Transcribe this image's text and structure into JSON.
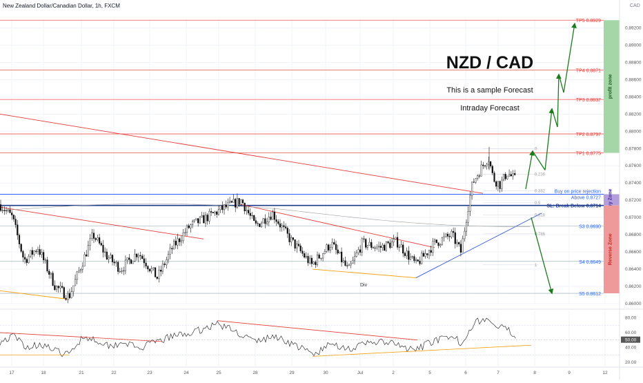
{
  "header": {
    "symbol_line": "New Zealand Dollar/Canadian Dollar, 1h, FXCM",
    "currency": "CAD"
  },
  "overlay": {
    "title": "NZD / CAD",
    "subtitle1": "This is a sample Forecast",
    "subtitle2": "Intraday Forecast"
  },
  "colors": {
    "tp_line": "#ef5350",
    "support_line": "#2962ff",
    "buy_line": "#1e3a8a",
    "forecast_arrow": "#1b7a1b",
    "trend_red": "#e53935",
    "trend_orange": "#f59e0b",
    "trend_blue": "#3b5bdb",
    "profit_zone": "#a5d6a7",
    "buy_zone": "#b39ddb",
    "reverse_zone": "#ef9a9a",
    "candle": "#111111",
    "rsi_line": "#333333"
  },
  "chart_data": [
    {
      "type": "candlestick",
      "title": "",
      "x_axis": {
        "tick_labels": [
          "17",
          "18",
          "21",
          "22",
          "23",
          "24",
          "25",
          "28",
          "29",
          "30",
          "Jul",
          "2",
          "5",
          "6",
          "7",
          "8",
          "9",
          "12"
        ]
      },
      "y_axis": {
        "range": [
          0.86,
          0.893
        ],
        "tick_labels": [
          "0.89200",
          "0.89000",
          "0.88800",
          "0.88600",
          "0.88400",
          "0.88200",
          "0.88000",
          "0.87800",
          "0.87600",
          "0.87400",
          "0.87200",
          "0.87000",
          "0.86800",
          "0.86600",
          "0.86400",
          "0.86200",
          "0.86000"
        ]
      },
      "price_anchors": [
        [
          0,
          0.8715
        ],
        [
          18,
          0.87
        ],
        [
          35,
          0.865
        ],
        [
          55,
          0.8665
        ],
        [
          80,
          0.862
        ],
        [
          100,
          0.8608
        ],
        [
          118,
          0.8645
        ],
        [
          135,
          0.868
        ],
        [
          155,
          0.8655
        ],
        [
          175,
          0.864
        ],
        [
          200,
          0.866
        ],
        [
          228,
          0.863
        ],
        [
          250,
          0.8665
        ],
        [
          275,
          0.869
        ],
        [
          300,
          0.87
        ],
        [
          322,
          0.871
        ],
        [
          350,
          0.872
        ],
        [
          370,
          0.869
        ],
        [
          395,
          0.8705
        ],
        [
          420,
          0.8675
        ],
        [
          452,
          0.8645
        ],
        [
          480,
          0.867
        ],
        [
          505,
          0.8638
        ],
        [
          525,
          0.867
        ],
        [
          550,
          0.8665
        ],
        [
          575,
          0.8672
        ],
        [
          603,
          0.8645
        ],
        [
          630,
          0.867
        ],
        [
          655,
          0.868
        ],
        [
          668,
          0.866
        ],
        [
          678,
          0.871
        ],
        [
          685,
          0.874
        ],
        [
          698,
          0.8758
        ],
        [
          708,
          0.877
        ],
        [
          715,
          0.8745
        ],
        [
          725,
          0.8738
        ],
        [
          735,
          0.8752
        ],
        [
          748,
          0.8743
        ]
      ],
      "levels": [
        {
          "name": "TP5",
          "value": 0.8929,
          "label": "TP5 0.8929"
        },
        {
          "name": "TP4",
          "value": 0.8871,
          "label": "TP4 0.8871"
        },
        {
          "name": "TP3",
          "value": 0.8837,
          "label": "TP3 0.8837"
        },
        {
          "name": "TP2",
          "value": 0.8797,
          "label": "TP2 0.8797"
        },
        {
          "name": "TP1",
          "value": 0.8775,
          "label": "TP1 0.8775"
        },
        {
          "name": "Buy",
          "value": 0.8727,
          "label": "Above 0.8727",
          "note": "Buy on price rejection"
        },
        {
          "name": "SL",
          "value": 0.8714,
          "label": "SL: Break Below 0.8714"
        },
        {
          "name": "S3",
          "value": 0.869,
          "label": "S3 0.8690"
        },
        {
          "name": "S4",
          "value": 0.8649,
          "label": "S4 0.8649"
        },
        {
          "name": "S5",
          "value": 0.8612,
          "label": "S5 0.8612"
        }
      ],
      "fib_labels": [
        "0",
        "0.236",
        "0.382",
        "0.5",
        "0.618",
        "0.786",
        "1"
      ],
      "zones": [
        {
          "name": "profit zone",
          "from": 0.8775,
          "to": 0.8929
        },
        {
          "name": "Buy Zone",
          "from": 0.8714,
          "to": 0.8727
        },
        {
          "name": "Reverse Zone",
          "from": 0.8612,
          "to": 0.8714
        }
      ],
      "annotations": [
        "Div"
      ]
    },
    {
      "type": "line",
      "title": "",
      "y_axis": {
        "range": [
          20,
          85
        ],
        "tick_labels": [
          "80.00",
          "60.00",
          "50.00",
          "40.00",
          "20.00"
        ]
      },
      "rsi_anchors": [
        [
          0,
          48
        ],
        [
          20,
          55
        ],
        [
          40,
          40
        ],
        [
          60,
          45
        ],
        [
          80,
          35
        ],
        [
          100,
          30
        ],
        [
          120,
          55
        ],
        [
          140,
          50
        ],
        [
          160,
          42
        ],
        [
          180,
          48
        ],
        [
          200,
          38
        ],
        [
          220,
          45
        ],
        [
          250,
          55
        ],
        [
          280,
          60
        ],
        [
          315,
          72
        ],
        [
          340,
          62
        ],
        [
          370,
          48
        ],
        [
          400,
          55
        ],
        [
          430,
          42
        ],
        [
          455,
          30
        ],
        [
          480,
          45
        ],
        [
          510,
          38
        ],
        [
          540,
          48
        ],
        [
          570,
          45
        ],
        [
          600,
          35
        ],
        [
          630,
          50
        ],
        [
          660,
          52
        ],
        [
          670,
          45
        ],
        [
          678,
          62
        ],
        [
          690,
          75
        ],
        [
          705,
          78
        ],
        [
          718,
          68
        ],
        [
          735,
          64
        ],
        [
          748,
          56
        ]
      ]
    }
  ]
}
